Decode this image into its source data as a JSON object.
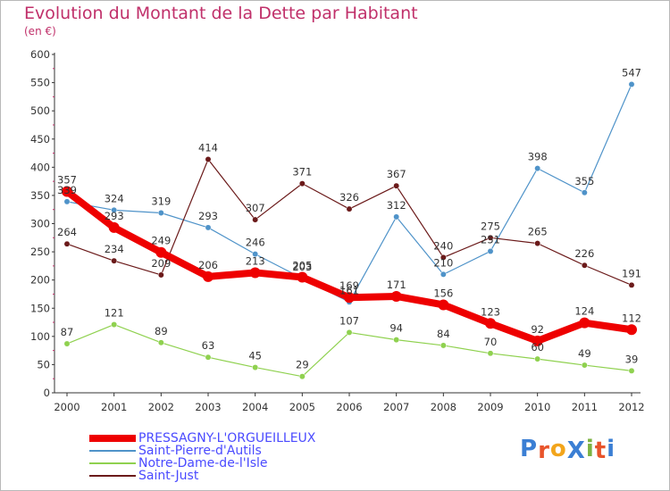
{
  "header": {
    "title": "Evolution du Montant de la Dette par Habitant",
    "subtitle": "(en €)"
  },
  "logo": {
    "text": "ProXiti",
    "letter_colors": [
      "#3b7fd4",
      "#e8542b",
      "#f2a51c",
      "#3b7fd4",
      "#7cb342",
      "#e8542b",
      "#3b7fd4"
    ]
  },
  "chart_data": {
    "type": "line",
    "x": [
      "2000",
      "2001",
      "2002",
      "2003",
      "2004",
      "2005",
      "2006",
      "2007",
      "2008",
      "2009",
      "2010",
      "2011",
      "2012"
    ],
    "ylim": [
      0,
      600
    ],
    "yticks": [
      "0",
      "50",
      "100",
      "150",
      "200",
      "250",
      "300",
      "350",
      "400",
      "450",
      "500",
      "550",
      "600"
    ],
    "grid": false,
    "legend_position": "bottom-left",
    "series": [
      {
        "name": "PRESSAGNY-L'ORGUEILLEUX",
        "color": "#ee0000",
        "values": [
          357,
          293,
          249,
          206,
          213,
          205,
          169,
          171,
          156,
          123,
          92,
          124,
          112
        ],
        "labels": [
          "357",
          "293",
          "249",
          "206",
          "213",
          "205",
          "169",
          "171",
          "156",
          "123",
          "92",
          "124",
          "112"
        ]
      },
      {
        "name": "Saint-Pierre-d'Autils",
        "color": "#4f93c9",
        "values": [
          339,
          324,
          319,
          293,
          246,
          203,
          161,
          312,
          210,
          251,
          398,
          355,
          547
        ],
        "labels": [
          "339",
          "324",
          "319",
          "293",
          "246",
          "203",
          "161",
          "312",
          "210",
          "251",
          "398",
          "355",
          "547"
        ]
      },
      {
        "name": "Notre-Dame-de-l'Isle",
        "color": "#8fd14f",
        "values": [
          87,
          121,
          89,
          63,
          45,
          29,
          107,
          94,
          84,
          70,
          60,
          49,
          39
        ],
        "labels": [
          "87",
          "121",
          "89",
          "63",
          "45",
          "29",
          "107",
          "94",
          "84",
          "70",
          "60",
          "49",
          "39"
        ]
      },
      {
        "name": "Saint-Just",
        "color": "#6b1a1a",
        "values": [
          264,
          234,
          209,
          414,
          307,
          371,
          326,
          367,
          240,
          275,
          265,
          226,
          191
        ],
        "labels": [
          "264",
          "234",
          "209",
          "414",
          "307",
          "371",
          "326",
          "367",
          "240",
          "275",
          "265",
          "226",
          "191"
        ]
      }
    ]
  }
}
